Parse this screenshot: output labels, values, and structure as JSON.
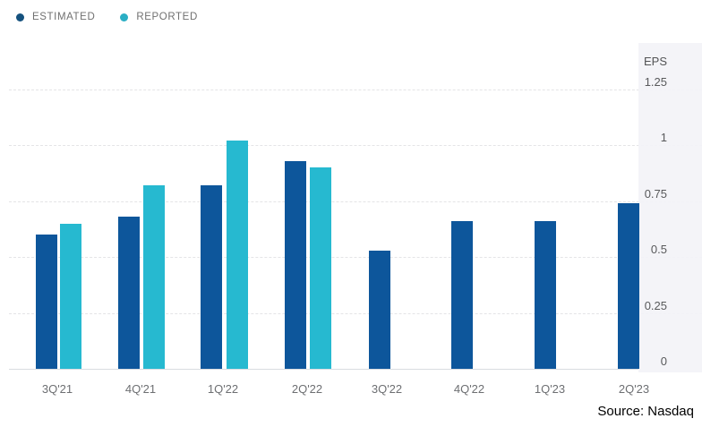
{
  "legend": {
    "items": [
      {
        "id": "estimated",
        "label": "ESTIMATED",
        "color": "#15517e"
      },
      {
        "id": "reported",
        "label": "REPORTED",
        "color": "#2aaec4"
      }
    ]
  },
  "axis": {
    "title": "EPS",
    "yticks": [
      {
        "value": 1.25,
        "label": "1.25"
      },
      {
        "value": 1,
        "label": "1"
      },
      {
        "value": 0.75,
        "label": "0.75"
      },
      {
        "value": 0.5,
        "label": "0.5"
      },
      {
        "value": 0.25,
        "label": "0.25"
      },
      {
        "value": 0,
        "label": "0"
      }
    ]
  },
  "source": "Source: Nasdaq",
  "colors": {
    "estimated_bar": "#0d569b",
    "reported_bar": "#26b9d0",
    "panel_bg": "#f3f3f7",
    "gridline": "#e4e4e6"
  },
  "chart_data": {
    "type": "bar",
    "title": "",
    "ylabel": "EPS",
    "ylim": [
      0,
      1.45
    ],
    "yticks": [
      0,
      0.25,
      0.5,
      0.75,
      1,
      1.25
    ],
    "grid": "horizontal-dashed",
    "legend_position": "top-left",
    "categories": [
      "3Q'21",
      "4Q'21",
      "1Q'22",
      "2Q'22",
      "3Q'22",
      "4Q'22",
      "1Q'23",
      "2Q'23"
    ],
    "series": [
      {
        "name": "ESTIMATED",
        "color": "#0d569b",
        "values": [
          0.6,
          0.68,
          0.82,
          0.93,
          0.53,
          0.66,
          0.66,
          0.74
        ]
      },
      {
        "name": "REPORTED",
        "color": "#26b9d0",
        "values": [
          0.65,
          0.82,
          1.02,
          0.9,
          null,
          null,
          null,
          null
        ]
      }
    ],
    "source": "Source: Nasdaq"
  }
}
